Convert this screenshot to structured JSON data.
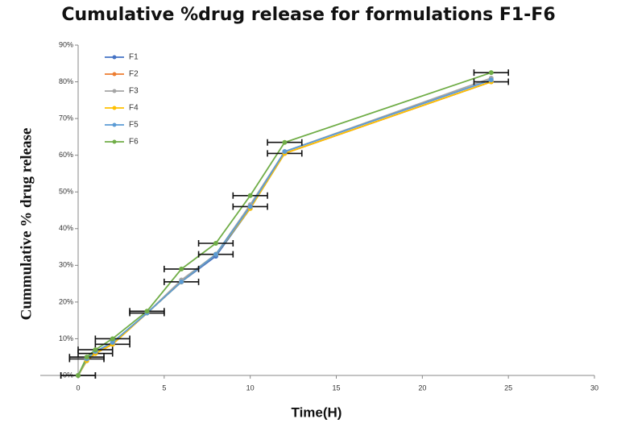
{
  "chart_data": {
    "type": "line",
    "title": "Cumulative %drug release for formulations F1-F6",
    "x_label": "Time(H)",
    "y_label": "Cummulative % drug release",
    "x": [
      0,
      0.5,
      1,
      2,
      4,
      6,
      8,
      10,
      12,
      24
    ],
    "series": [
      {
        "name": "F1",
        "color": "#4472c4",
        "values": [
          0,
          4,
          6,
          8.5,
          17,
          25.5,
          32.5,
          45.5,
          60.5,
          80
        ]
      },
      {
        "name": "F2",
        "color": "#ed7d31",
        "values": [
          0,
          4.5,
          6,
          8.5,
          17,
          25.5,
          33,
          46,
          60.5,
          80
        ],
        "xerr": [
          1,
          1,
          1,
          1,
          1,
          1,
          1,
          1,
          1,
          1
        ]
      },
      {
        "name": "F3",
        "color": "#a5a5a5",
        "values": [
          0,
          4.5,
          6.5,
          9,
          17,
          26,
          33,
          46.5,
          61,
          81
        ]
      },
      {
        "name": "F4",
        "color": "#ffc000",
        "values": [
          0,
          4,
          6,
          8.5,
          17,
          25.5,
          33,
          45.5,
          60.5,
          80
        ]
      },
      {
        "name": "F5",
        "color": "#5b9bd5",
        "values": [
          0,
          4.5,
          6.5,
          9,
          17,
          25.5,
          33,
          46,
          61,
          80.5
        ]
      },
      {
        "name": "F6",
        "color": "#70ad47",
        "values": [
          0,
          5,
          7,
          10,
          17.5,
          29,
          36,
          49,
          63.5,
          82.5
        ],
        "xerr": [
          1,
          1,
          1,
          1,
          1,
          1,
          1,
          1,
          1,
          1
        ]
      }
    ],
    "xlim": [
      -2.2,
      30
    ],
    "xticks": [
      0,
      5,
      10,
      15,
      20,
      25,
      30
    ],
    "ylim": [
      0,
      90
    ],
    "yticks": [
      {
        "value": 0,
        "label": "0%"
      },
      {
        "value": 10,
        "label": "10%"
      },
      {
        "value": 20,
        "label": "20%"
      },
      {
        "value": 30,
        "label": "30%"
      },
      {
        "value": 40,
        "label": "40%"
      },
      {
        "value": 50,
        "label": "50%"
      },
      {
        "value": 60,
        "label": "60%"
      },
      {
        "value": 70,
        "label": "70%"
      },
      {
        "value": 80,
        "label": "80%"
      },
      {
        "value": 90,
        "label": "90%"
      }
    ],
    "grid": false,
    "legend": "top-left"
  }
}
